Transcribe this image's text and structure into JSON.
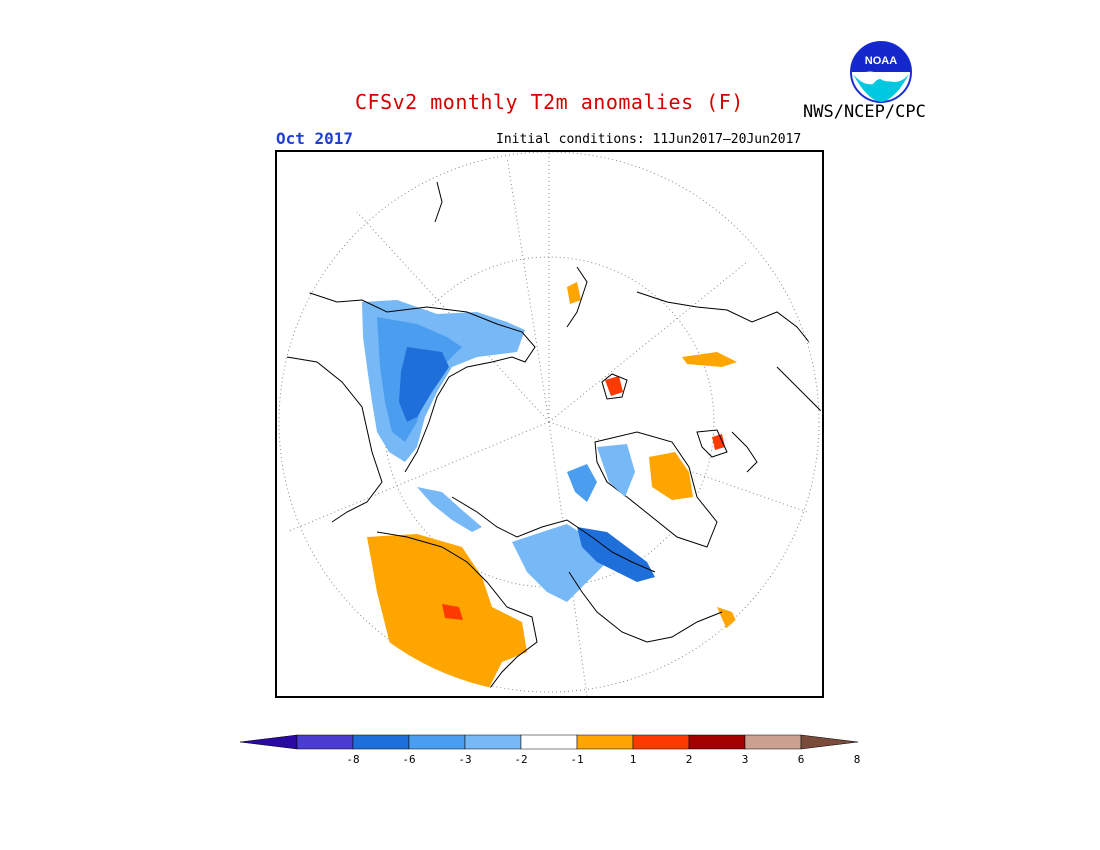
{
  "title": "CFSv2 monthly T2m anomalies (F)",
  "agency": "NWS/NCEP/CPC",
  "logo_text": "NOAA",
  "valid_month": "Oct 2017",
  "initial_conditions": "Initial conditions: 11Jun2017–20Jun2017",
  "map": {
    "projection": "north-polar-stereographic",
    "anomaly_regions": [
      {
        "region": "Northern Siberia / Kara-Laptev coast",
        "category": "-3 to -2",
        "color": "#4da6f0"
      },
      {
        "region": "Central Siberia",
        "category": "-6 to -3",
        "color": "#1e6fd9"
      },
      {
        "region": "Canadian Arctic Archipelago / Hudson Bay",
        "category": "-6 to -3",
        "color": "#1e6fd9"
      },
      {
        "region": "Alaska / Beaufort coast",
        "category": "-2 to -1",
        "color": "#77b8f6"
      },
      {
        "region": "Greenland east and south coasts",
        "category": "1 to 2",
        "color": "#ffa500"
      },
      {
        "region": "Western Europe / Iberia",
        "category": "1 to 2",
        "color": "#ffa500"
      },
      {
        "region": "Iceland",
        "category": "2 to 3",
        "color": "#ff3300"
      },
      {
        "region": "Svalbard",
        "category": "2 to 3",
        "color": "#ff3300"
      }
    ]
  },
  "colorbar": {
    "colors": [
      "#2a0aa3",
      "#4a3ccf",
      "#1e6fd9",
      "#4b9df0",
      "#77b8f6",
      "#ffffff",
      "#ffa500",
      "#ff3a00",
      "#a30000",
      "#caa190",
      "#7a4a3a"
    ],
    "labels": [
      "-8",
      "-6",
      "-3",
      "-2",
      "-1",
      "1",
      "2",
      "3",
      "6",
      "8"
    ]
  }
}
